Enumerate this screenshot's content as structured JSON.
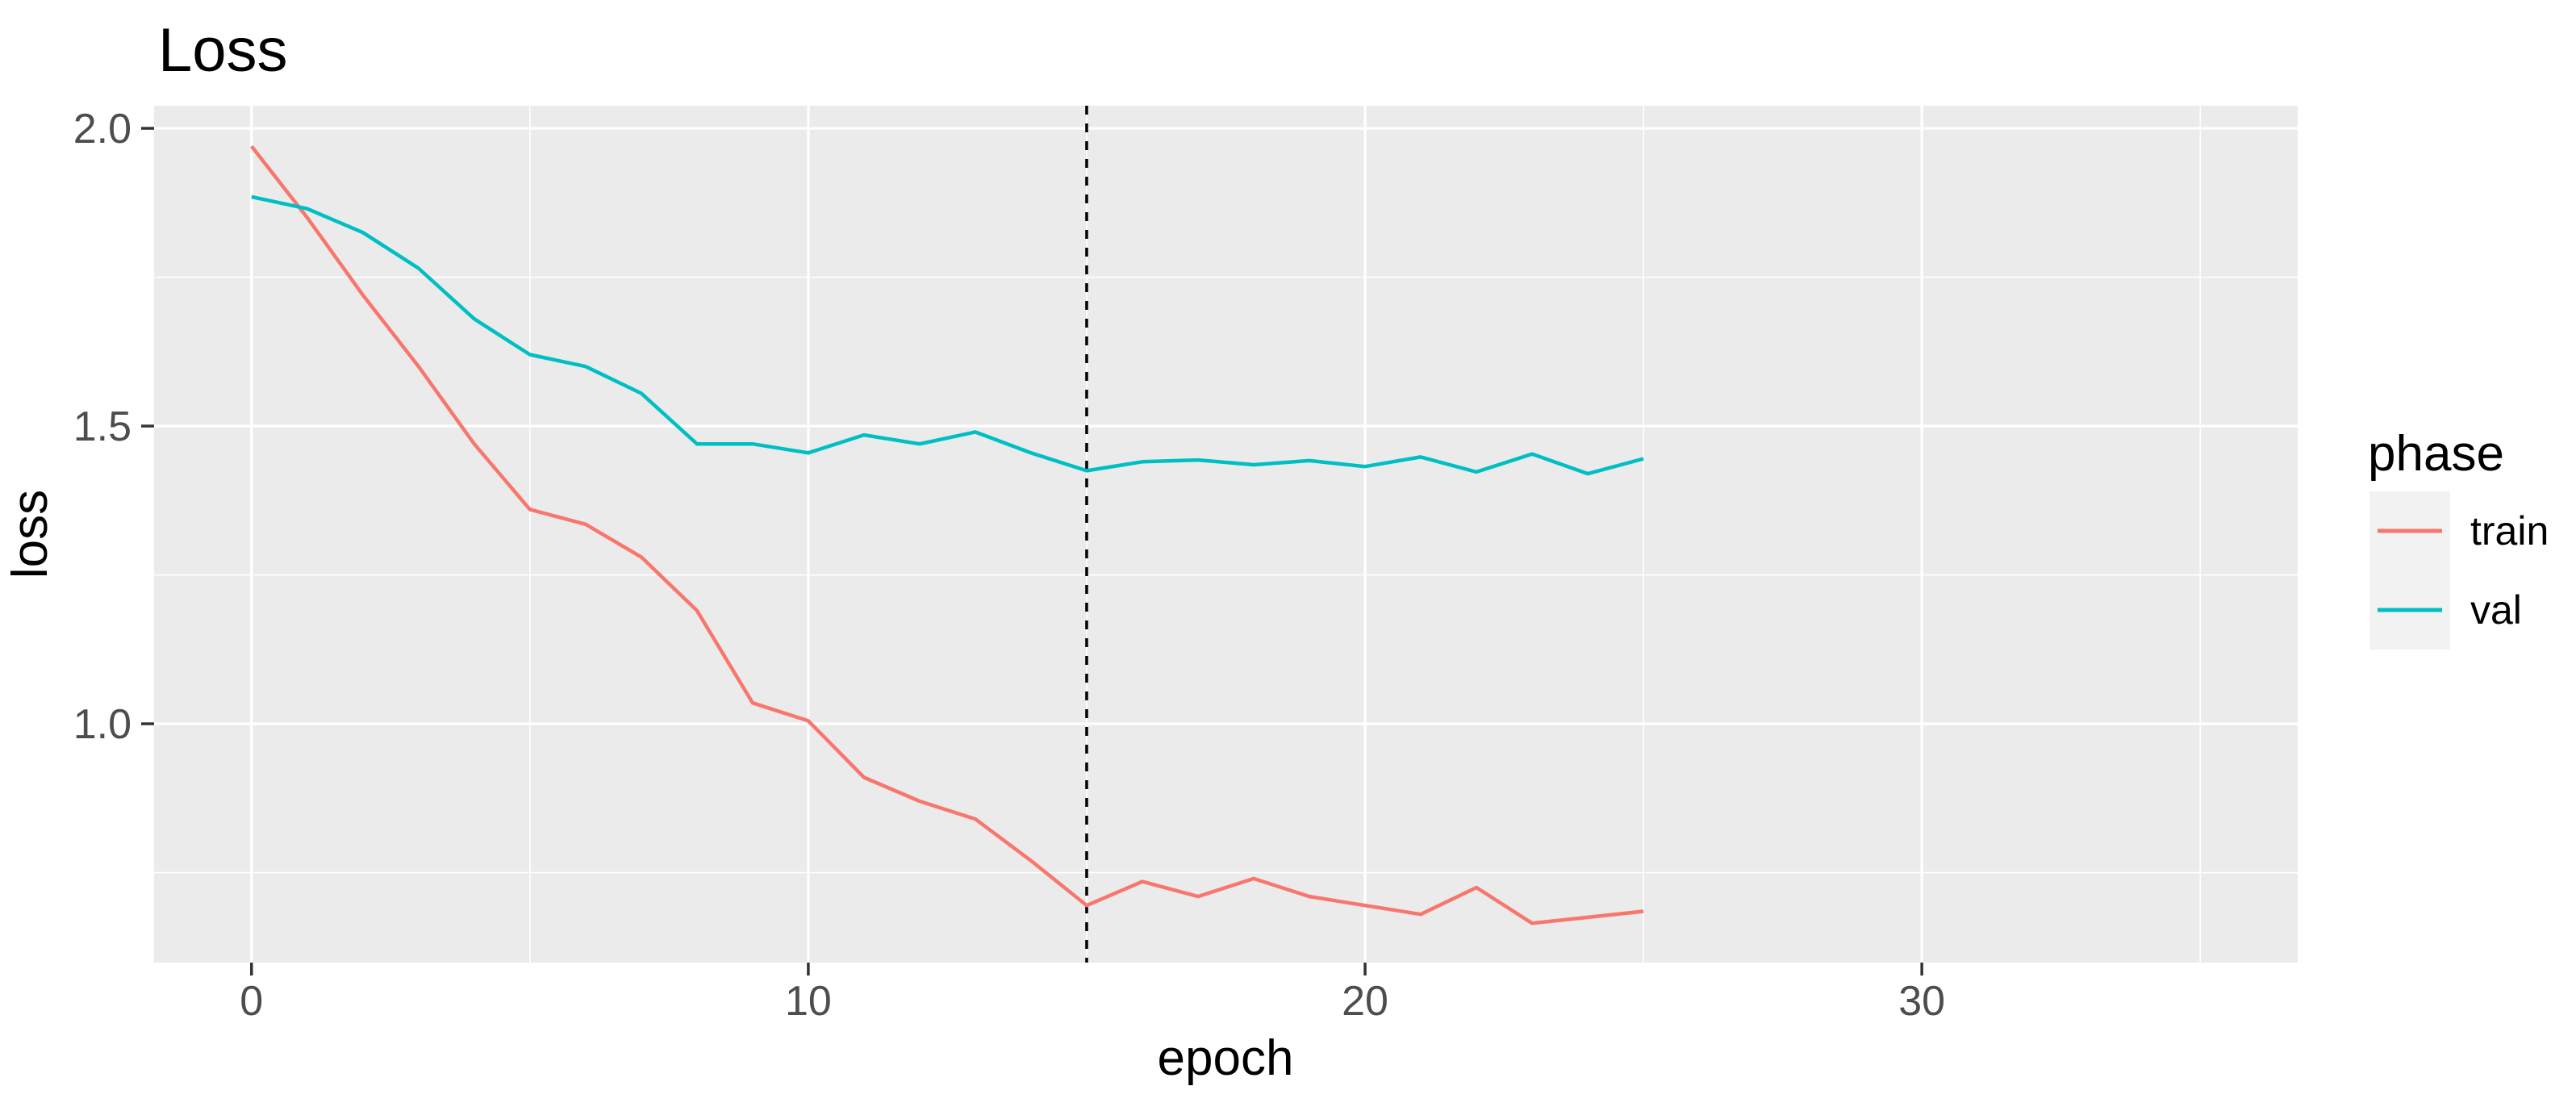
{
  "chart_data": {
    "type": "line",
    "title": "Loss",
    "xlabel": "epoch",
    "ylabel": "loss",
    "x": [
      0,
      1,
      2,
      3,
      4,
      5,
      6,
      7,
      8,
      9,
      10,
      11,
      12,
      13,
      14,
      15,
      16,
      17,
      18,
      19,
      20,
      21,
      22,
      23,
      24,
      25
    ],
    "series": [
      {
        "name": "train",
        "color": "#F8766D",
        "values": [
          1.97,
          1.85,
          1.72,
          1.6,
          1.47,
          1.36,
          1.335,
          1.28,
          1.19,
          1.035,
          1.005,
          0.91,
          0.87,
          0.84,
          0.77,
          0.695,
          0.735,
          0.71,
          0.74,
          0.71,
          0.695,
          0.68,
          0.725,
          0.665,
          0.675,
          0.685
        ]
      },
      {
        "name": "val",
        "color": "#00BFC4",
        "values": [
          1.885,
          1.865,
          1.825,
          1.765,
          1.68,
          1.62,
          1.6,
          1.555,
          1.47,
          1.47,
          1.455,
          1.485,
          1.47,
          1.49,
          1.455,
          1.425,
          1.44,
          1.443,
          1.435,
          1.442,
          1.432,
          1.448,
          1.423,
          1.453,
          1.42,
          1.445
        ]
      }
    ],
    "vline": {
      "x": 15,
      "style": "dashed",
      "color": "#000000"
    },
    "x_ticks": [
      0,
      10,
      20,
      30
    ],
    "x_minor_gridlines": [
      5,
      15,
      25,
      35
    ],
    "y_ticks": [
      1.0,
      1.5,
      2.0
    ],
    "y_tick_labels": [
      "1.0",
      "1.5",
      "2.0"
    ],
    "y_minor_gridlines": [
      0.75,
      1.25,
      1.75
    ],
    "xlim": [
      -1.75,
      36.75
    ],
    "ylim": [
      0.599,
      2.038
    ],
    "grid": "white major and minor gridlines on",
    "legend": {
      "title": "phase",
      "position": "right",
      "entries": [
        {
          "label": "train",
          "color": "#F8766D"
        },
        {
          "label": "val",
          "color": "#00BFC4"
        }
      ]
    }
  },
  "colors": {
    "panel_background": "#EBEBEB",
    "page_background": "#FFFFFF",
    "gridline": "#FFFFFF",
    "tick_mark": "#333333",
    "tick_text": "#4D4D4D",
    "title_text": "#000000",
    "legend_key_background": "#F2F2F2"
  }
}
